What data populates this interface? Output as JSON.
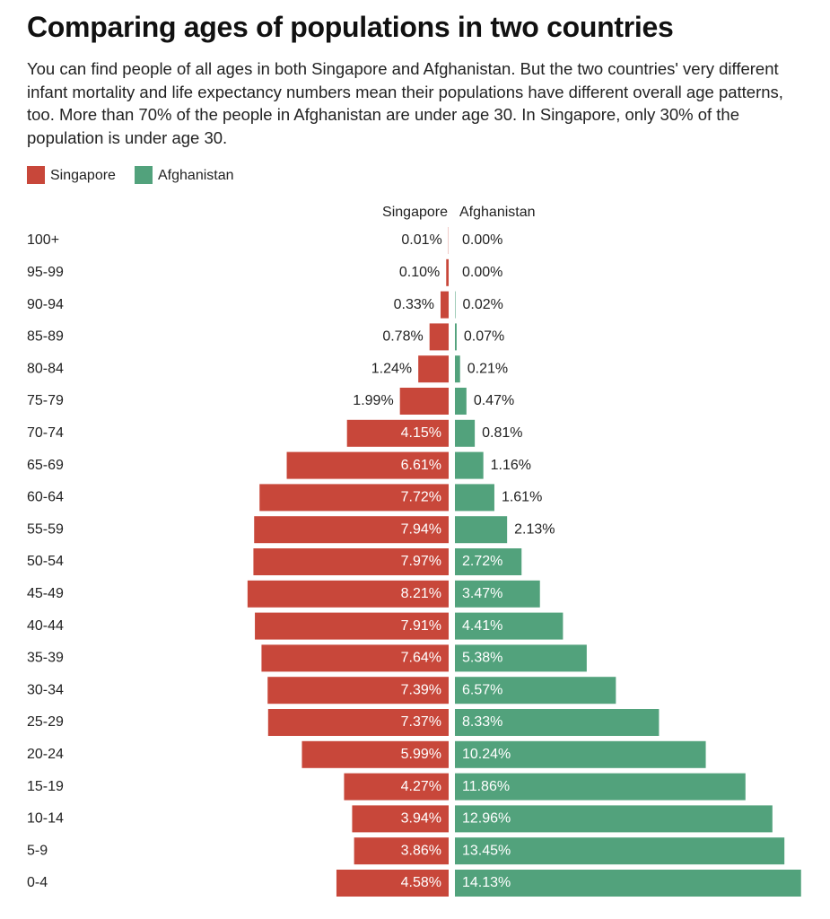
{
  "chart_data": {
    "type": "pyramid",
    "title": "Comparing ages of populations in two countries",
    "subtitle": "You can find people of all ages in both Singapore and Afghanistan. But the two countries' very different infant mortality and life expectancy numbers mean their populations have different overall age patterns, too. More than 70% of the people in Afghanistan are under age 30. In Singapore, only 30% of the population is under age 30.",
    "categories": [
      "100+",
      "95-99",
      "90-94",
      "85-89",
      "80-84",
      "75-79",
      "70-74",
      "65-69",
      "60-64",
      "55-59",
      "50-54",
      "45-49",
      "40-44",
      "35-39",
      "30-34",
      "25-29",
      "20-24",
      "15-19",
      "10-14",
      "5-9",
      "0-4"
    ],
    "series": [
      {
        "name": "Singapore",
        "color": "#c8473a",
        "values": [
          0.01,
          0.1,
          0.33,
          0.78,
          1.24,
          1.99,
          4.15,
          6.61,
          7.72,
          7.94,
          7.97,
          8.21,
          7.91,
          7.64,
          7.39,
          7.37,
          5.99,
          4.27,
          3.94,
          3.86,
          4.58
        ],
        "value_labels": [
          "0.01%",
          "0.10%",
          "0.33%",
          "0.78%",
          "1.24%",
          "1.99%",
          "4.15%",
          "6.61%",
          "7.72%",
          "7.94%",
          "7.97%",
          "8.21%",
          "7.91%",
          "7.64%",
          "7.39%",
          "7.37%",
          "5.99%",
          "4.27%",
          "3.94%",
          "3.86%",
          "4.58%"
        ]
      },
      {
        "name": "Afghanistan",
        "color": "#52a27c",
        "values": [
          0.0,
          0.0,
          0.02,
          0.07,
          0.21,
          0.47,
          0.81,
          1.16,
          1.61,
          2.13,
          2.72,
          3.47,
          4.41,
          5.38,
          6.57,
          8.33,
          10.24,
          11.86,
          12.96,
          13.45,
          14.13
        ],
        "value_labels": [
          "0.00%",
          "0.00%",
          "0.02%",
          "0.07%",
          "0.21%",
          "0.47%",
          "0.81%",
          "1.16%",
          "1.61%",
          "2.13%",
          "2.72%",
          "3.47%",
          "4.41%",
          "5.38%",
          "6.57%",
          "8.33%",
          "10.24%",
          "11.86%",
          "12.96%",
          "13.45%",
          "14.13%"
        ]
      }
    ]
  }
}
